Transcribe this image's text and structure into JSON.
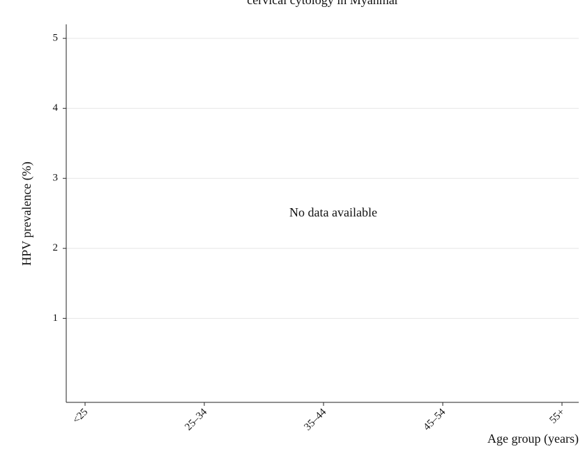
{
  "chart_data": {
    "type": "bar",
    "title": "cervical cytology in Myanmar",
    "annotation": "No data available",
    "x_label": "Age group (years)",
    "y_label": "HPV prevalence (%)",
    "categories": [
      "<25",
      "25–34",
      "35–44",
      "45–54",
      "55+"
    ],
    "ylim": [
      -0.2,
      5.2
    ],
    "yticks": [
      1,
      2,
      3,
      4,
      5
    ],
    "grid": true
  }
}
